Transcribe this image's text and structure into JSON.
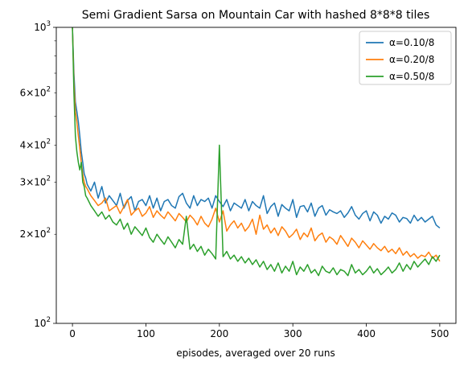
{
  "chart_data": {
    "type": "line",
    "title": "Semi Gradient Sarsa on Mountain Car with hashed 8*8*8 tiles",
    "xlabel": "episodes, averaged over 20 runs",
    "ylabel": "",
    "xlim": [
      -22,
      522
    ],
    "ylim": [
      100,
      1000
    ],
    "yscale": "log",
    "grid": false,
    "legend_position": "top-right",
    "x_ticks": [
      {
        "value": 0,
        "label": "0"
      },
      {
        "value": 100,
        "label": "100"
      },
      {
        "value": 200,
        "label": "200"
      },
      {
        "value": 300,
        "label": "300"
      },
      {
        "value": 400,
        "label": "400"
      },
      {
        "value": 500,
        "label": "500"
      }
    ],
    "y_major_ticks": [
      {
        "value": 100,
        "base": "10",
        "exp": "2"
      },
      {
        "value": 1000,
        "base": "10",
        "exp": "3"
      }
    ],
    "y_minor_ticks": [
      {
        "value": 200,
        "mant": "2",
        "base": "10",
        "exp": "2"
      },
      {
        "value": 300,
        "mant": "3",
        "base": "10",
        "exp": "2"
      },
      {
        "value": 400,
        "mant": "4",
        "base": "10",
        "exp": "2"
      },
      {
        "value": 500,
        "mant": "",
        "base": "",
        "exp": ""
      },
      {
        "value": 600,
        "mant": "6",
        "base": "10",
        "exp": "2"
      },
      {
        "value": 700,
        "mant": "",
        "base": "",
        "exp": ""
      },
      {
        "value": 800,
        "mant": "",
        "base": "",
        "exp": ""
      },
      {
        "value": 900,
        "mant": "",
        "base": "",
        "exp": ""
      }
    ],
    "series": [
      {
        "name": "α=0.10/8",
        "color": "#1f77b4",
        "x": [
          0,
          2,
          4,
          6,
          8,
          10,
          12,
          14,
          16,
          18,
          20,
          25,
          30,
          35,
          40,
          45,
          50,
          55,
          60,
          65,
          70,
          75,
          80,
          85,
          90,
          95,
          100,
          105,
          110,
          115,
          120,
          125,
          130,
          135,
          140,
          145,
          150,
          155,
          160,
          165,
          170,
          175,
          180,
          185,
          190,
          195,
          200,
          205,
          210,
          215,
          220,
          225,
          230,
          235,
          240,
          245,
          250,
          255,
          260,
          265,
          270,
          275,
          280,
          285,
          290,
          295,
          300,
          305,
          310,
          315,
          320,
          325,
          330,
          335,
          340,
          345,
          350,
          355,
          360,
          365,
          370,
          375,
          380,
          385,
          390,
          395,
          400,
          405,
          410,
          415,
          420,
          425,
          430,
          435,
          440,
          445,
          450,
          455,
          460,
          465,
          470,
          475,
          480,
          485,
          490,
          495,
          500
        ],
        "y": [
          1000,
          700,
          560,
          520,
          480,
          430,
          380,
          350,
          320,
          310,
          295,
          280,
          300,
          265,
          290,
          255,
          270,
          260,
          250,
          275,
          245,
          260,
          268,
          240,
          258,
          262,
          250,
          270,
          245,
          265,
          240,
          258,
          262,
          250,
          245,
          268,
          275,
          255,
          245,
          270,
          250,
          262,
          258,
          265,
          245,
          270,
          258,
          248,
          262,
          240,
          255,
          250,
          245,
          262,
          240,
          258,
          250,
          245,
          270,
          235,
          248,
          255,
          230,
          252,
          245,
          240,
          262,
          228,
          248,
          250,
          238,
          255,
          230,
          245,
          250,
          232,
          242,
          238,
          235,
          240,
          228,
          236,
          248,
          232,
          225,
          235,
          240,
          222,
          238,
          232,
          218,
          230,
          225,
          236,
          232,
          220,
          228,
          226,
          218,
          232,
          222,
          228,
          220,
          225,
          230,
          215,
          210
        ]
      },
      {
        "name": "α=0.20/8",
        "color": "#ff7f0e",
        "x": [
          0,
          2,
          4,
          6,
          8,
          10,
          12,
          14,
          16,
          18,
          20,
          25,
          30,
          35,
          40,
          45,
          50,
          55,
          60,
          65,
          70,
          75,
          80,
          85,
          90,
          95,
          100,
          105,
          110,
          115,
          120,
          125,
          130,
          135,
          140,
          145,
          150,
          155,
          160,
          165,
          170,
          175,
          180,
          185,
          190,
          195,
          200,
          205,
          210,
          215,
          220,
          225,
          230,
          235,
          240,
          245,
          250,
          255,
          260,
          265,
          270,
          275,
          280,
          285,
          290,
          295,
          300,
          305,
          310,
          315,
          320,
          325,
          330,
          335,
          340,
          345,
          350,
          355,
          360,
          365,
          370,
          375,
          380,
          385,
          390,
          395,
          400,
          405,
          410,
          415,
          420,
          425,
          430,
          435,
          440,
          445,
          450,
          455,
          460,
          465,
          470,
          475,
          480,
          485,
          490,
          495,
          500
        ],
        "y": [
          1000,
          650,
          520,
          480,
          430,
          390,
          350,
          320,
          300,
          290,
          285,
          270,
          260,
          250,
          255,
          265,
          240,
          245,
          250,
          235,
          248,
          262,
          232,
          240,
          245,
          230,
          236,
          248,
          228,
          240,
          232,
          226,
          238,
          230,
          222,
          235,
          228,
          220,
          232,
          225,
          215,
          230,
          218,
          212,
          225,
          245,
          220,
          240,
          205,
          215,
          222,
          210,
          218,
          205,
          212,
          225,
          200,
          232,
          208,
          215,
          202,
          210,
          198,
          212,
          205,
          195,
          200,
          208,
          192,
          202,
          196,
          210,
          190,
          198,
          202,
          188,
          196,
          192,
          185,
          198,
          190,
          182,
          194,
          188,
          180,
          190,
          184,
          178,
          186,
          180,
          176,
          182,
          174,
          178,
          172,
          180,
          170,
          175,
          168,
          172,
          166,
          170,
          168,
          174,
          166,
          170,
          162
        ]
      },
      {
        "name": "α=0.50/8",
        "color": "#2ca02c",
        "x": [
          0,
          2,
          4,
          6,
          8,
          10,
          12,
          14,
          16,
          18,
          20,
          25,
          30,
          35,
          40,
          45,
          50,
          55,
          60,
          65,
          70,
          75,
          80,
          85,
          90,
          95,
          100,
          105,
          110,
          115,
          120,
          125,
          130,
          135,
          140,
          145,
          150,
          155,
          160,
          165,
          170,
          175,
          180,
          185,
          190,
          195,
          200,
          205,
          210,
          215,
          220,
          225,
          230,
          235,
          240,
          245,
          250,
          255,
          260,
          265,
          270,
          275,
          280,
          285,
          290,
          295,
          300,
          305,
          310,
          315,
          320,
          325,
          330,
          335,
          340,
          345,
          350,
          355,
          360,
          365,
          370,
          375,
          380,
          385,
          390,
          395,
          400,
          405,
          410,
          415,
          420,
          425,
          430,
          435,
          440,
          445,
          450,
          455,
          460,
          465,
          470,
          475,
          480,
          485,
          490,
          495,
          500
        ],
        "y": [
          1000,
          600,
          430,
          380,
          350,
          330,
          350,
          300,
          290,
          270,
          265,
          250,
          240,
          230,
          238,
          225,
          232,
          220,
          215,
          225,
          208,
          218,
          200,
          212,
          205,
          198,
          210,
          195,
          188,
          200,
          192,
          185,
          196,
          188,
          180,
          192,
          185,
          230,
          178,
          185,
          175,
          182,
          170,
          178,
          172,
          165,
          400,
          168,
          175,
          165,
          170,
          162,
          168,
          160,
          166,
          158,
          164,
          155,
          162,
          152,
          158,
          150,
          160,
          148,
          156,
          150,
          162,
          146,
          155,
          150,
          158,
          148,
          152,
          145,
          156,
          150,
          148,
          154,
          146,
          152,
          150,
          145,
          158,
          148,
          152,
          146,
          150,
          156,
          148,
          153,
          146,
          150,
          155,
          148,
          152,
          160,
          150,
          158,
          152,
          162,
          155,
          160,
          165,
          158,
          168,
          162,
          170
        ]
      }
    ]
  }
}
